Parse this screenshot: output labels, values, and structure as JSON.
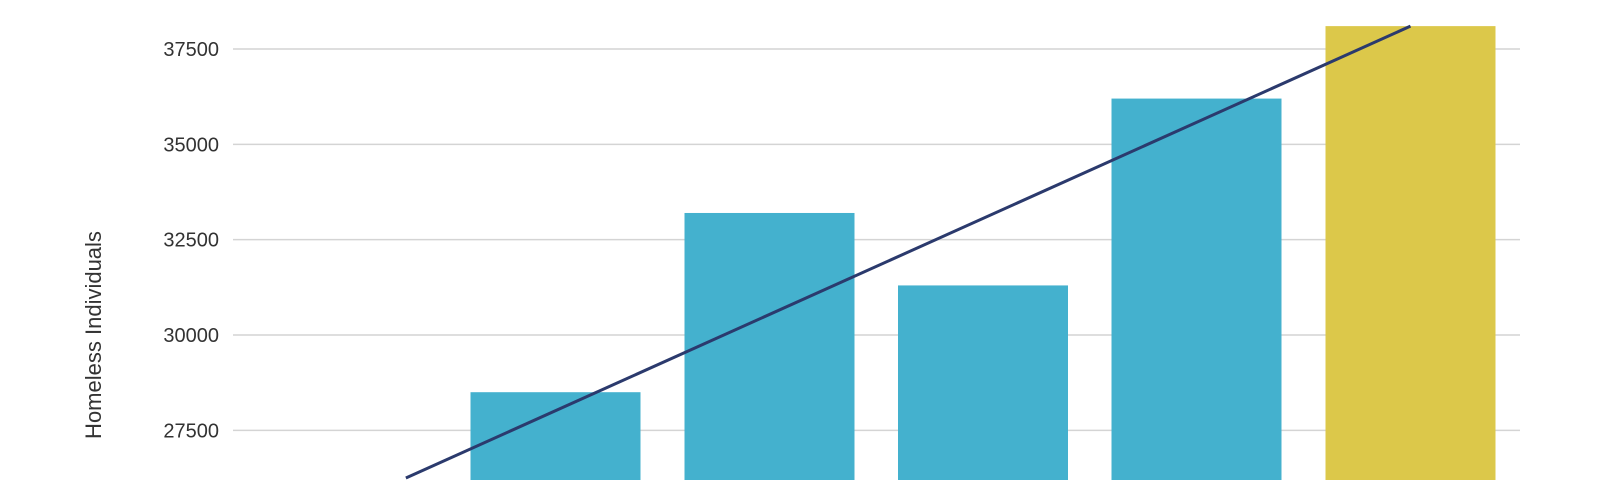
{
  "chart_data": {
    "type": "bar",
    "ylabel": "Homeless Individuals",
    "xlabel": "",
    "y_ticks": [
      27500,
      30000,
      32500,
      35000,
      37500
    ],
    "ylim": [
      26500,
      38700
    ],
    "grid": true,
    "series": [
      {
        "type": "bar",
        "values": [
          28500,
          33200,
          31300,
          36200,
          38100
        ],
        "colors": [
          "#44b1ce",
          "#44b1ce",
          "#44b1ce",
          "#44b1ce",
          "#dcc84a"
        ]
      },
      {
        "type": "line",
        "note": "trend line",
        "x": [
          -0.7,
          4.0
        ],
        "values": [
          26250,
          38100
        ],
        "color": "#2b3a6d"
      }
    ]
  }
}
